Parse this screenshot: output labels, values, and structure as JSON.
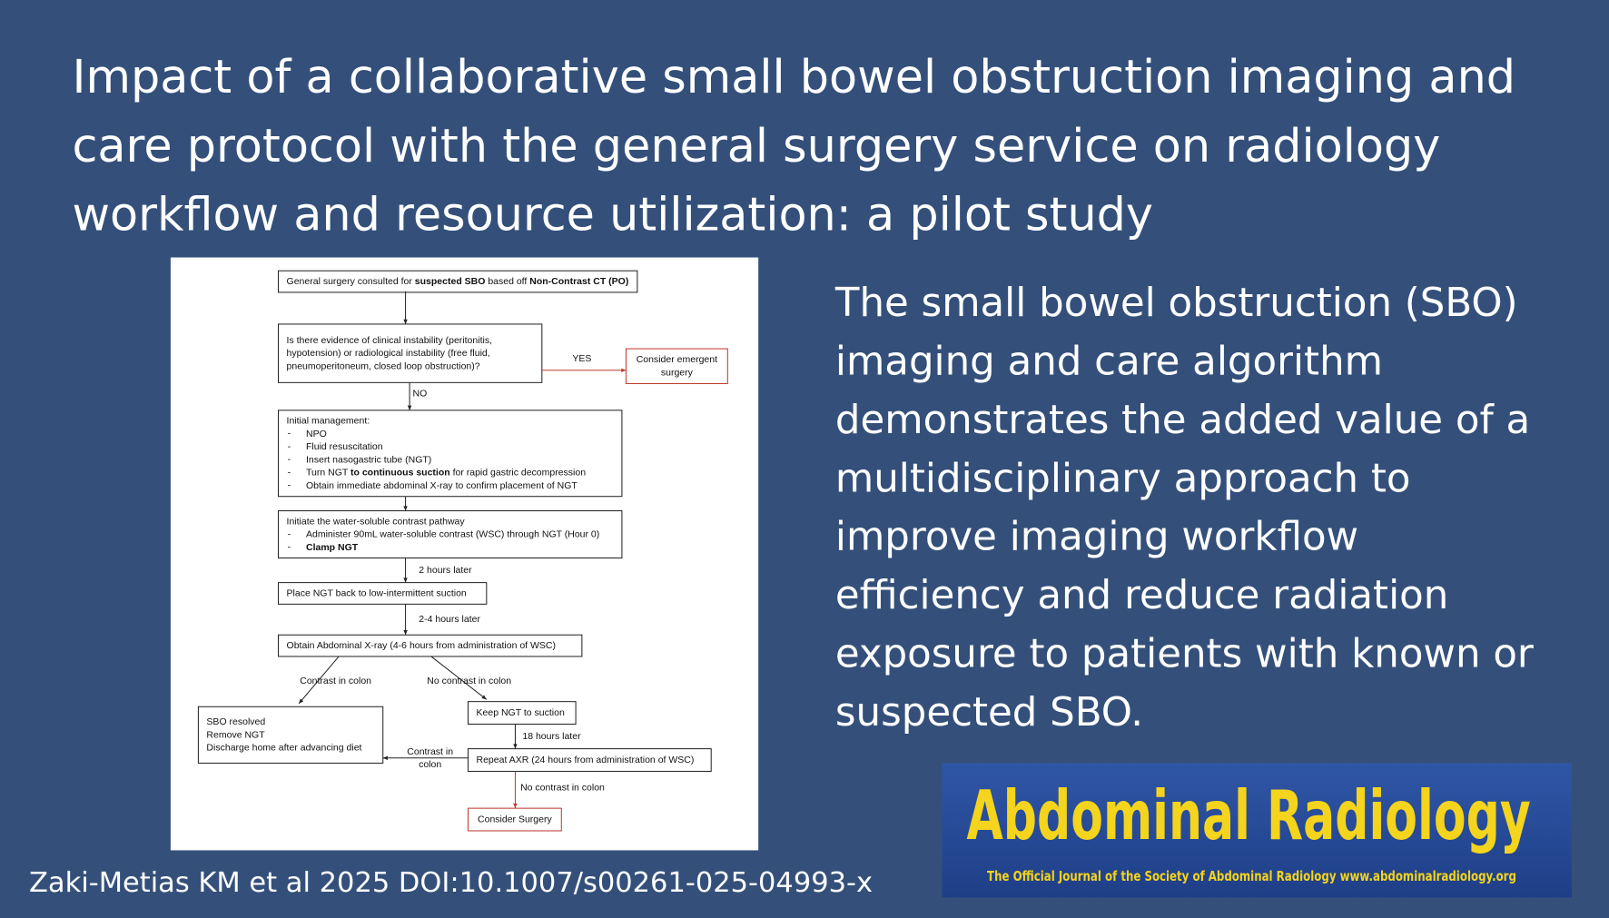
{
  "header": {
    "title_lines": [
      "Impact of a collaborative small bowel obstruction imaging and",
      "care protocol with the general surgery service on radiology",
      "workflow and resource utilization: a pilot study"
    ]
  },
  "summary": {
    "lines": [
      "The small bowel obstruction (SBO)",
      "imaging and care algorithm",
      "demonstrates the added value of a",
      "multidisciplinary approach to",
      "improve imaging workflow",
      "efficiency and reduce radiation",
      "exposure to patients with known or",
      "suspected SBO."
    ]
  },
  "citation": "Zaki-Metias KM et al 2025 DOI:10.1007/s00261-025-04993-x",
  "logo": {
    "title": "Abdominal Radiology",
    "subtitle": "The Official Journal of the Society of Abdominal Radiology www.abdominalradiology.org"
  },
  "flowchart": {
    "nodes": [
      {
        "lines": [
          [
            "General surgery consulted for ",
            {
              "text": "suspected SBO",
              "bold": true
            },
            " based off ",
            {
              "text": "Non-Contrast CT (PO)",
              "bold": true
            }
          ]
        ]
      },
      {
        "lines": [
          [
            "Is there evidence of clinical instability (peritonitis,"
          ],
          [
            "hypotension) or radiological instability (free fluid,"
          ],
          [
            "pneumoperitoneum, closed loop obstruction)?"
          ]
        ]
      },
      {
        "lines": [
          [
            "Consider emergent"
          ],
          [
            "surgery"
          ]
        ],
        "color": "#c0392b"
      },
      {
        "lines": [
          [
            "Initial management:"
          ]
        ],
        "bullet": "-",
        "items": [
          [
            "NPO"
          ],
          [
            "Fluid resuscitation"
          ],
          [
            "Insert nasogastric tube (NGT)"
          ],
          [
            "Turn NGT ",
            {
              "text": "to continuous suction",
              "bold": true
            },
            " for rapid gastric decompression"
          ],
          [
            "Obtain immediate abdominal X-ray to confirm placement of NGT"
          ]
        ]
      },
      {
        "lines": [
          [
            "Initiate the water-soluble contrast pathway"
          ]
        ],
        "bullet": "-",
        "items": [
          [
            "Administer 90mL water-soluble contrast (WSC) through NGT (Hour 0)"
          ],
          [
            {
              "text": "Clamp NGT",
              "bold": true
            }
          ]
        ]
      },
      {
        "lines": [
          [
            "Place NGT back to low-intermittent suction"
          ]
        ]
      },
      {
        "lines": [
          [
            "Obtain Abdominal X-ray (4-6 hours from administration of WSC)"
          ]
        ]
      },
      {
        "lines": [
          [
            "SBO resolved"
          ],
          [
            "Remove NGT"
          ],
          [
            "Discharge home after advancing diet"
          ]
        ]
      },
      {
        "lines": [
          [
            "Keep NGT to suction"
          ]
        ]
      },
      {
        "lines": [
          [
            "Repeat AXR (24 hours from administration of WSC)"
          ]
        ]
      },
      {
        "lines": [
          [
            "Consider Surgery"
          ]
        ],
        "color": "#c0392b"
      }
    ],
    "edge_labels": [
      [
        "YES"
      ],
      [
        "NO"
      ],
      [
        "2 hours later"
      ],
      [
        "2-4 hours later"
      ],
      [
        "Contrast in colon"
      ],
      [
        "No contrast in colon"
      ],
      [
        "18 hours later"
      ],
      [
        "Contrast in",
        "colon"
      ],
      [
        "No contrast in colon"
      ]
    ]
  }
}
